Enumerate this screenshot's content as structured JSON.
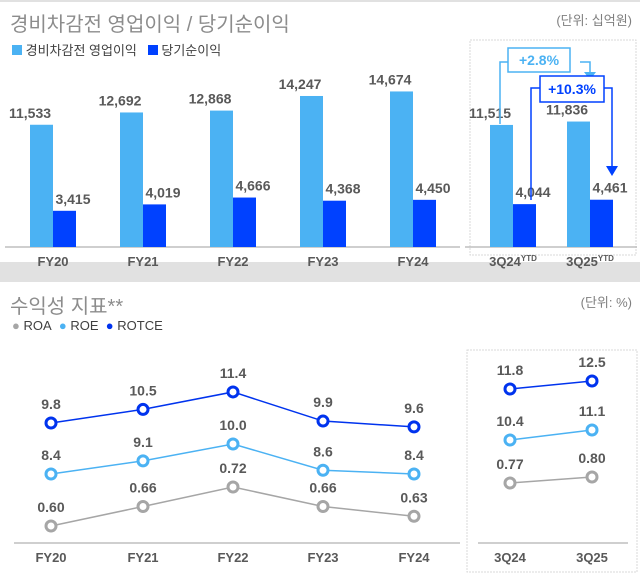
{
  "top": {
    "title": "경비차감전 영업이익 / 당기순이익",
    "unit": "(단위: 십억원)",
    "legend": [
      {
        "label": "경비차감전 영업이익",
        "color": "#4bb2f3"
      },
      {
        "label": "당기순이익",
        "color": "#0041ff"
      }
    ]
  },
  "bottom": {
    "title": "수익성 지표**",
    "unit": "(단위: %)",
    "legend": [
      {
        "label": "ROA",
        "color": "#a6a6a6"
      },
      {
        "label": "ROE",
        "color": "#4bb2f3"
      },
      {
        "label": "ROTCE",
        "color": "#0033ee"
      }
    ]
  },
  "chart_data": [
    {
      "type": "bar",
      "categories": [
        "FY20",
        "FY21",
        "FY22",
        "FY23",
        "FY24"
      ],
      "series": [
        {
          "name": "경비차감전 영업이익",
          "values": [
            11533,
            12692,
            12868,
            14247,
            14674
          ],
          "labels": [
            "11,533",
            "12,692",
            "12,868",
            "14,247",
            "14,674"
          ]
        },
        {
          "name": "당기순이익",
          "values": [
            3415,
            4019,
            4666,
            4368,
            4450
          ],
          "labels": [
            "3,415",
            "4,019",
            "4,666",
            "4,368",
            "4,450"
          ]
        }
      ]
    },
    {
      "type": "bar",
      "categories": [
        "3Q24",
        "3Q25"
      ],
      "category_superscript": "YTD",
      "series": [
        {
          "name": "경비차감전 영업이익",
          "values": [
            11515,
            11836
          ],
          "labels": [
            "11,515",
            "11,836"
          ]
        },
        {
          "name": "당기순이익",
          "values": [
            4044,
            4461
          ],
          "labels": [
            "4,044",
            "4,461"
          ]
        }
      ],
      "annotations": [
        {
          "text": "+2.8%",
          "color": "#4bb2f3"
        },
        {
          "text": "+10.3%",
          "color": "#0041ff"
        }
      ]
    },
    {
      "type": "line",
      "categories": [
        "FY20",
        "FY21",
        "FY22",
        "FY23",
        "FY24"
      ],
      "series": [
        {
          "name": "ROTCE",
          "values": [
            9.8,
            10.5,
            11.4,
            9.9,
            9.6
          ],
          "labels": [
            "9.8",
            "10.5",
            "11.4",
            "9.9",
            "9.6"
          ]
        },
        {
          "name": "ROE",
          "values": [
            8.4,
            9.1,
            10.0,
            8.6,
            8.4
          ],
          "labels": [
            "8.4",
            "9.1",
            "10.0",
            "8.6",
            "8.4"
          ]
        },
        {
          "name": "ROA",
          "values": [
            0.6,
            0.66,
            0.72,
            0.66,
            0.63
          ],
          "labels": [
            "0.60",
            "0.66",
            "0.72",
            "0.66",
            "0.63"
          ]
        }
      ]
    },
    {
      "type": "line",
      "categories": [
        "3Q24",
        "3Q25"
      ],
      "series": [
        {
          "name": "ROTCE",
          "values": [
            11.8,
            12.5
          ],
          "labels": [
            "11.8",
            "12.5"
          ]
        },
        {
          "name": "ROE",
          "values": [
            10.4,
            11.1
          ],
          "labels": [
            "10.4",
            "11.1"
          ]
        },
        {
          "name": "ROA",
          "values": [
            0.77,
            0.8
          ],
          "labels": [
            "0.77",
            "0.80"
          ]
        }
      ]
    }
  ]
}
